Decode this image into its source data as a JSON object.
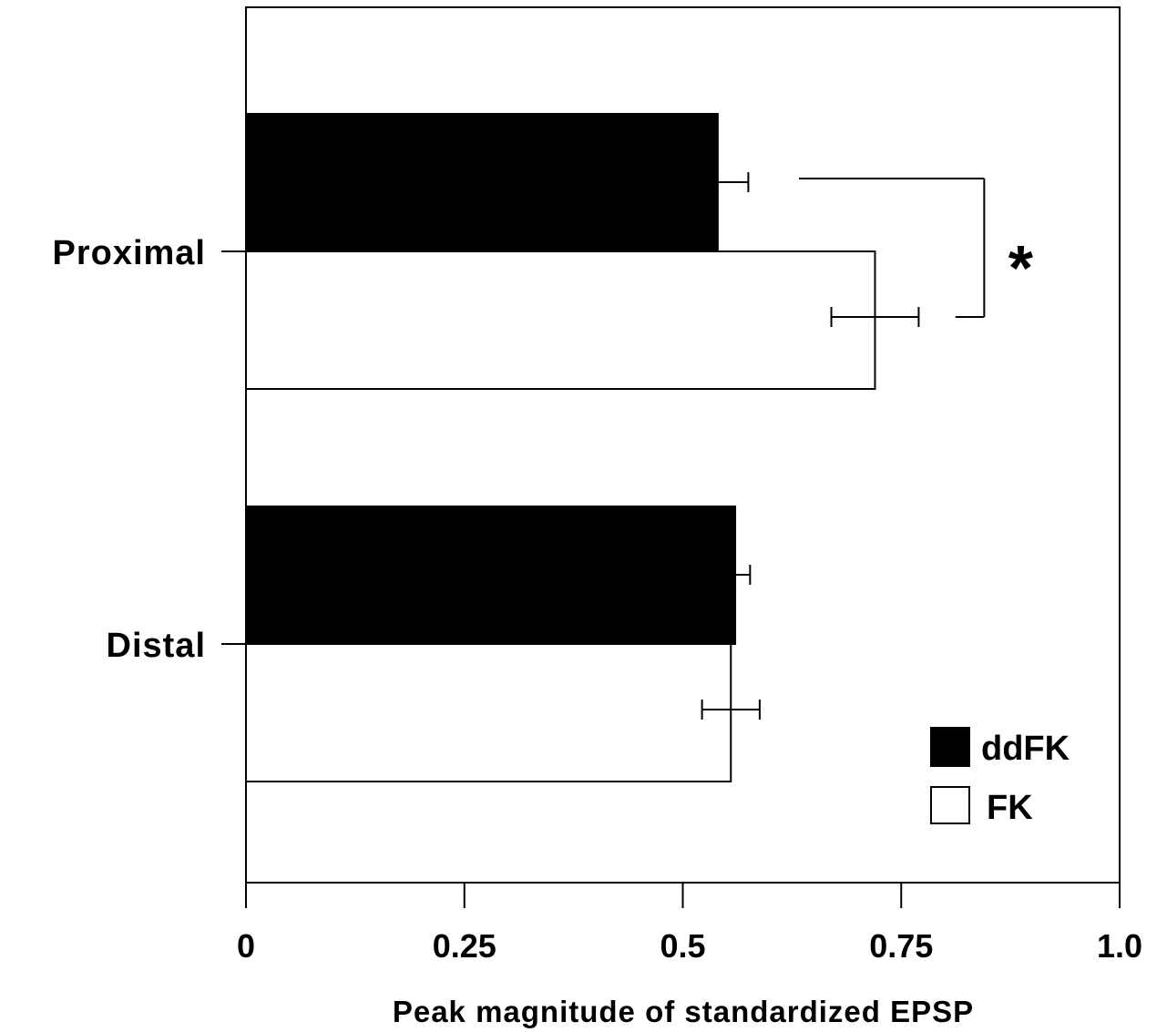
{
  "chart_data": {
    "type": "bar",
    "orientation": "horizontal",
    "categories": [
      "Proximal",
      "Distal"
    ],
    "series": [
      {
        "name": "ddFK",
        "color": "#000000",
        "values": [
          0.54,
          0.56
        ],
        "errors": [
          0.035,
          0.017
        ]
      },
      {
        "name": "FK",
        "color": "#ffffff",
        "values": [
          0.72,
          0.555
        ],
        "errors": [
          0.05,
          0.033
        ]
      }
    ],
    "xlabel": "Peak magnitude of standardized EPSP",
    "xlim": [
      0,
      1.0
    ],
    "xticks": [
      0,
      0.25,
      0.5,
      0.75,
      1.0
    ],
    "xtick_labels": [
      "0",
      "0.25",
      "0.5",
      "0.75",
      "1.0"
    ],
    "legend_position": "bottom-right",
    "grid": false,
    "annotations": [
      {
        "type": "significance",
        "text": "*",
        "category": "Proximal",
        "between": [
          "ddFK",
          "FK"
        ]
      }
    ]
  }
}
